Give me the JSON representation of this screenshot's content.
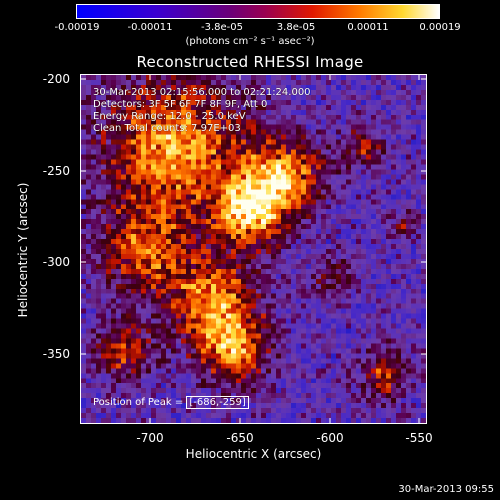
{
  "colorbar": {
    "ticks": [
      "-0.00019",
      "-0.00011",
      "-3.8e-05",
      "3.8e-05",
      "0.00011",
      "0.00019"
    ],
    "label": "(photons cm⁻² s⁻¹ asec⁻²)",
    "colors": [
      "#0000ff",
      "#3300ff",
      "#7700aa",
      "#aa0077",
      "#dd2200",
      "#ff8800",
      "#ffee33",
      "#ffffff"
    ]
  },
  "title": "Reconstructed RHESSI Image",
  "annotations": [
    "30-Mar-2013 02:15:56.000 to 02:21:24.000",
    "Detectors: 3F 5F 6F 7F 8F 9F, Att 0",
    "Energy Range: 12.0 - 25.0 keV",
    "Clean    Total counts: 7.97E+03"
  ],
  "peak": {
    "label": "Position of Peak =",
    "value": "[-686,-259]"
  },
  "axes": {
    "xlabel": "Heliocentric X (arcsec)",
    "ylabel": "Heliocentric Y (arcsec)",
    "xticks": [
      "-700",
      "-650",
      "-600",
      "-550"
    ],
    "yticks": [
      "-200",
      "-250",
      "-300",
      "-350"
    ],
    "xlim": [
      -737,
      -542
    ],
    "ylim": [
      -388,
      -193
    ]
  },
  "timestamp": "30-Mar-2013 09:55"
}
